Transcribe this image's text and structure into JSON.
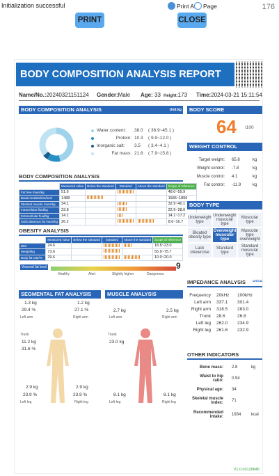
{
  "topbar": {
    "status": "Initialization successful",
    "print_all": "Print All",
    "page": "Page",
    "page_number": "176"
  },
  "buttons": {
    "print": "PRINT",
    "close": "CLOSE"
  },
  "report": {
    "title": "BODY COMPOSITION ANALYSIS REPORT",
    "no_label": "Name/No.:",
    "no_value": "20240321151124",
    "gender_label": "Gender:",
    "gender_value": "Male",
    "age_label": "Age:",
    "age_value": "33",
    "height_label": "Height:",
    "height_value": "173",
    "time_label": "Time:",
    "time_value": "2024-03-21 15:11:54",
    "bca_title": "BODY COMPOSITION ANALYSIS",
    "unit": "Unit:kg",
    "donut": [
      {
        "label": "Water content:",
        "value": "38.0",
        "range": "( 36.9~45.1 )",
        "color": "#9fd3ec"
      },
      {
        "label": "Protein:",
        "value": "10.3",
        "range": "( 9.9~12.0 )",
        "color": "#2b8fc4"
      },
      {
        "label": "Inorganic salt:",
        "value": "3.5",
        "range": "( 3.4~4.1 )",
        "color": "#1a5c8c"
      },
      {
        "label": "Fat mass:",
        "value": "21.8",
        "range": "( 7.9~15.8 )",
        "color": "#bfe3f3"
      }
    ],
    "bca2_title": "BODY COMPOSITION ANALYSIS",
    "bca_headers": [
      "Measured value",
      "Below the standard",
      "Standard",
      "Above the standard",
      "Scope of reference"
    ],
    "bca_rows": [
      {
        "label": "Fat free mass/kg",
        "value": "51.6",
        "range": "48.0~59.9"
      },
      {
        "label": "Basal metabolism/kcal",
        "value": "1488",
        "range": "1586~1856"
      },
      {
        "label": "Skeletal muscle mass/kg",
        "value": "34.1",
        "range": "32.9~40.1"
      },
      {
        "label": "Intracellular fluid/kg",
        "value": "23.8",
        "range": "22.9~28.0"
      },
      {
        "label": "Extracellular fluid/kg",
        "value": "14.1",
        "range": "14.1~17.2"
      },
      {
        "label": "Subcutaneous fat mass/kg",
        "value": "26.2",
        "range": "8.6~16.7"
      }
    ],
    "obesity_title": "OBESITY ANALYSIS",
    "obesity_rows": [
      {
        "label": "BMI",
        "value": "24.6",
        "range": "18.5~23.0"
      },
      {
        "label": "Weight/kg",
        "value": "73.6",
        "range": "55.9~75.7"
      },
      {
        "label": "Body fat rate/%",
        "value": "29.6",
        "range": "10.0~20.0"
      }
    ],
    "visceral_label": "Visceral fat level",
    "visceral_value": "9",
    "visceral_scale": [
      "Healthy",
      "Alert",
      "Slightly higher",
      "Dangerous"
    ],
    "seg_fat_title": "SEGMENTAL FAT ANALYSIS",
    "muscle_title": "MUSCLE ANALYSIS",
    "seg_fat": {
      "left_arm": {
        "kg": "1.3",
        "pct": "29.4"
      },
      "right_arm": {
        "kg": "1.2",
        "pct": "27.1"
      },
      "trunk": {
        "kg": "11.2",
        "pct": "31.6"
      },
      "left_leg": {
        "kg": "2.9",
        "pct": "23.9"
      },
      "right_leg": {
        "kg": "2.9",
        "pct": "23.9"
      }
    },
    "muscle": {
      "left_arm": "2.7",
      "right_arm": "2.5",
      "trunk": "23.0",
      "left_leg": "8.1",
      "right_leg": "8.1"
    },
    "seg_labels": {
      "left_arm": "Left arm",
      "right_arm": "Right arm",
      "trunk": "Trunk",
      "left_leg": "Left leg",
      "right_leg": "Right leg",
      "kg": "kg",
      "pct": "%"
    },
    "body_score_title": "BODY SCORE",
    "body_score": "64",
    "body_score_max": "/100",
    "weight_control_title": "WEIGHT CONTROL",
    "weight_control": [
      {
        "label": "Target weight:",
        "value": "65.8",
        "unit": "kg"
      },
      {
        "label": "Weight control:",
        "value": "-7.8",
        "unit": "kg"
      },
      {
        "label": "Muscle control:",
        "value": "4.1",
        "unit": "kg"
      },
      {
        "label": "Fat control:",
        "value": "-11.9",
        "unit": "kg"
      }
    ],
    "body_type_title": "BODY TYPE",
    "body_types": [
      "Underweight type",
      "Underweight muscular type",
      "Muscular type",
      "Bloated obesity type",
      "Overweight muscular type",
      "Muscular type overweight",
      "Lack ofexercise",
      "Standard type",
      "Standard muscular type"
    ],
    "body_type_selected": 4,
    "impedance_title": "IMPEDANCE ANALYSIS",
    "impedance_unit": "Unit:Ω",
    "impedance_headers": [
      "Frequency",
      "20kHz",
      "100kHz"
    ],
    "impedance_rows": [
      {
        "label": "Left arm",
        "a": "337.1",
        "b": "301.4"
      },
      {
        "label": "Right arm",
        "a": "318.5",
        "b": "283.0"
      },
      {
        "label": "Trunk",
        "a": "28.6",
        "b": "26.8"
      },
      {
        "label": "Left leg",
        "a": "262.0",
        "b": "234.9"
      },
      {
        "label": "Right leg",
        "a": "261.6",
        "b": "232.9"
      }
    ],
    "other_title": "OTHER INDICATORS",
    "other": [
      {
        "label": "Bone mass:",
        "value": "2.8",
        "unit": "kg"
      },
      {
        "label": "Waist to hip ratio:",
        "value": "0.94",
        "unit": ""
      },
      {
        "label": "Physical age:",
        "value": "34",
        "unit": ""
      },
      {
        "label": "Skeletal muscle index:",
        "value": "71",
        "unit": ""
      },
      {
        "label": "Recommended intake:",
        "value": "1934",
        "unit": "kcal"
      }
    ],
    "version": "V1.0.03120845"
  }
}
